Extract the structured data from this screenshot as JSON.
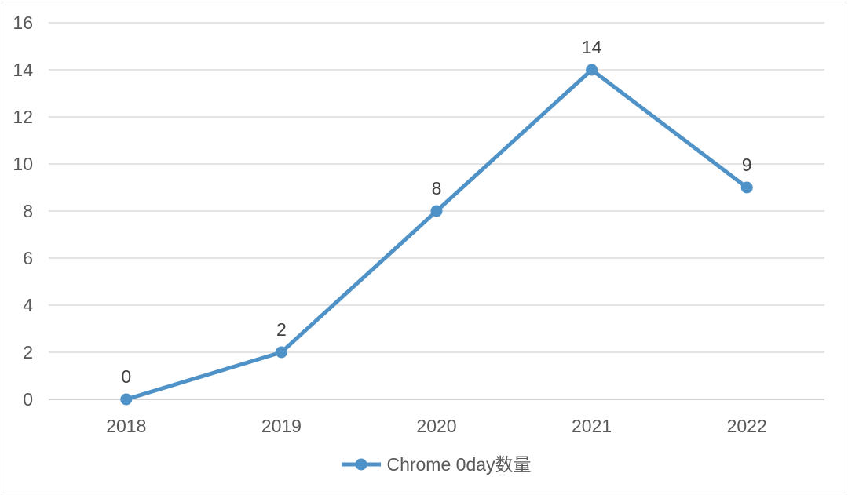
{
  "chart_data": {
    "type": "line",
    "title": "",
    "categories": [
      "2018",
      "2019",
      "2020",
      "2021",
      "2022"
    ],
    "series": [
      {
        "name": "Chrome 0day数量",
        "values": [
          0,
          2,
          8,
          14,
          9
        ]
      }
    ],
    "data_labels": [
      "0",
      "2",
      "8",
      "14",
      "9"
    ],
    "ylim": [
      0,
      16
    ],
    "ytick_step": 2,
    "yticks": [
      "0",
      "2",
      "4",
      "6",
      "8",
      "10",
      "12",
      "14",
      "16"
    ],
    "grid": true,
    "legend_position": "bottom"
  },
  "legend": {
    "label": "Chrome 0day数量"
  },
  "style": {
    "line_color": "#4e92c8",
    "marker_color": "#4e92c8",
    "grid_color": "#dcdcdc",
    "axis_line_color": "#c9c9c9",
    "tick_label_color": "#595959",
    "data_label_color": "#3f3f3f",
    "background": "#ffffff",
    "border_color": "#d9d9d9"
  }
}
